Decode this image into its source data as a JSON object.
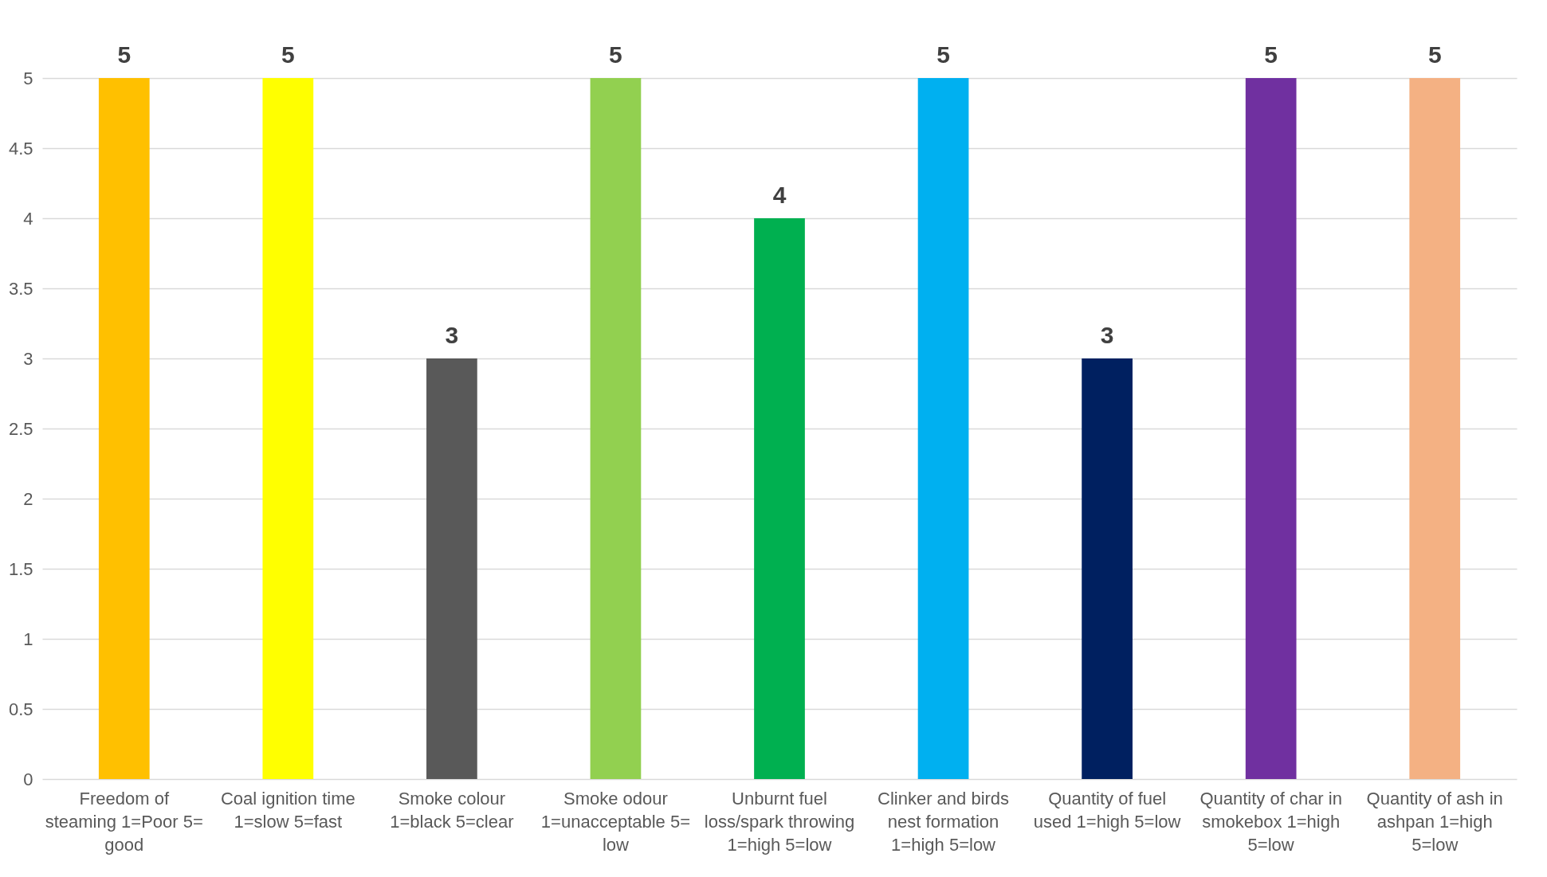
{
  "chart_data": {
    "type": "bar",
    "categories": [
      "Freedom of steaming 1=Poor 5= good",
      "Coal ignition time 1=slow 5=fast",
      "Smoke colour 1=black 5=clear",
      "Smoke odour 1=unacceptable 5= low",
      "Unburnt fuel loss/spark throwing 1=high 5=low",
      "Clinker and birds nest formation 1=high 5=low",
      "Quantity of fuel used 1=high 5=low",
      "Quantity of char in smokebox 1=high 5=low",
      "Quantity of ash in ashpan 1=high 5=low"
    ],
    "values": [
      5,
      5,
      3,
      5,
      4,
      5,
      3,
      5,
      5
    ],
    "colors": [
      "#ffc000",
      "#ffff00",
      "#595959",
      "#92d050",
      "#00b050",
      "#00b0f0",
      "#002060",
      "#7030a0",
      "#f4b183"
    ],
    "ylim": [
      0,
      5
    ],
    "yticks": [
      0,
      0.5,
      1,
      1.5,
      2,
      2.5,
      3,
      3.5,
      4,
      4.5,
      5
    ],
    "grid": "y",
    "data_labels": true
  }
}
